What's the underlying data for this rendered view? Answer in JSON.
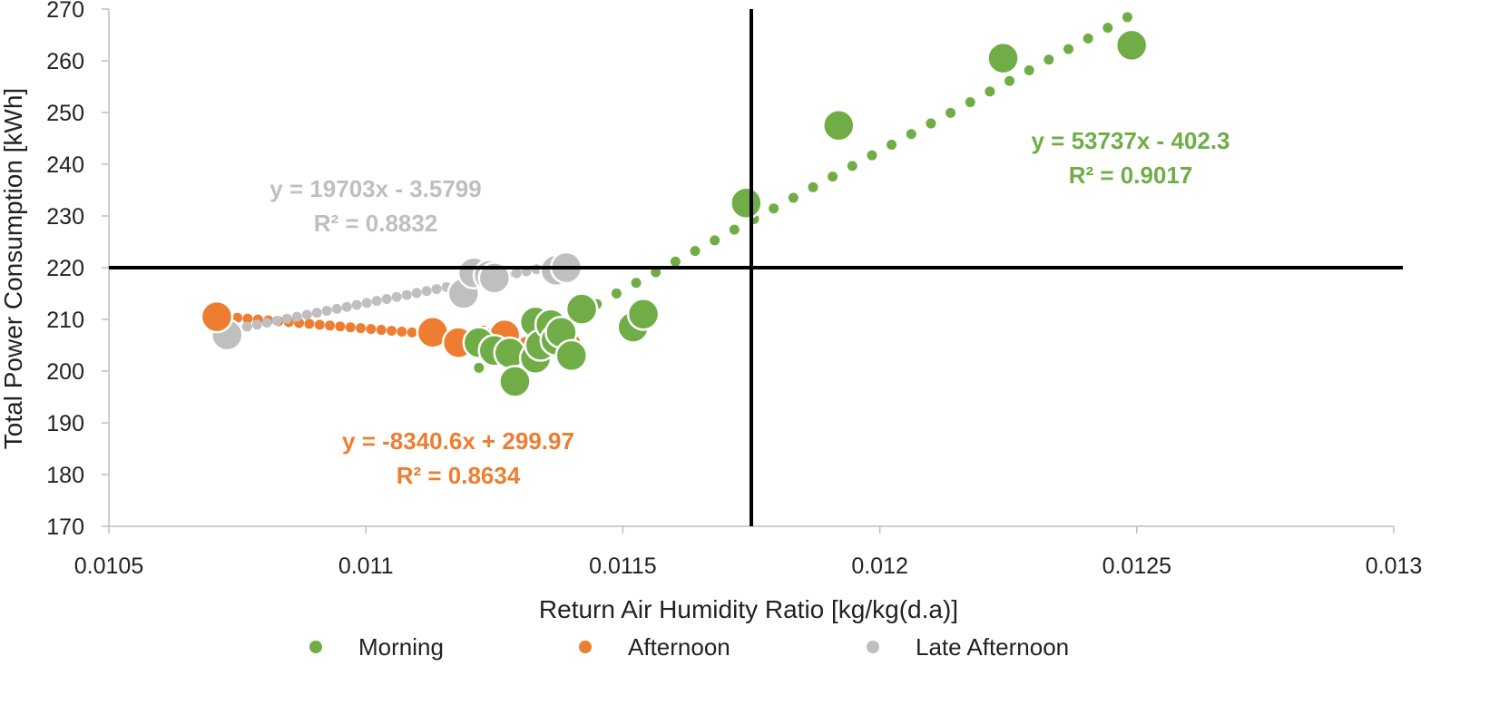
{
  "chart_data": {
    "type": "scatter",
    "title": "",
    "xlabel": "Return Air Humidity Ratio [kg/kg(d.a)]",
    "ylabel": "Total Power Consumption [kWh]",
    "xlim": [
      0.0105,
      0.013
    ],
    "ylim": [
      170,
      270
    ],
    "x_ticks": [
      "0.0105",
      "0.011",
      "0.0115",
      "0.012",
      "0.0125",
      "0.013"
    ],
    "y_ticks": [
      "170",
      "180",
      "190",
      "200",
      "210",
      "220",
      "230",
      "240",
      "250",
      "260",
      "270"
    ],
    "grid": false,
    "legend_position": "bottom",
    "reference_lines": {
      "x": 0.01175,
      "y": 220
    },
    "series": [
      {
        "name": "Morning",
        "color": "#70AD47",
        "points": [
          [
            0.01122,
            205.5
          ],
          [
            0.01125,
            204.0
          ],
          [
            0.01128,
            203.5
          ],
          [
            0.01129,
            198.0
          ],
          [
            0.01133,
            202.5
          ],
          [
            0.01133,
            209.5
          ],
          [
            0.01134,
            205.0
          ],
          [
            0.01136,
            209.0
          ],
          [
            0.01137,
            206.0
          ],
          [
            0.01138,
            207.5
          ],
          [
            0.0114,
            203.0
          ],
          [
            0.01142,
            212.0
          ],
          [
            0.01152,
            208.5
          ],
          [
            0.01154,
            211.0
          ],
          [
            0.01174,
            232.5
          ],
          [
            0.01192,
            247.5
          ],
          [
            0.01224,
            260.5
          ],
          [
            0.01249,
            263.0
          ]
        ],
        "trendline": {
          "equation": "y = 53737x - 402.3",
          "r2": "R² = 0.9017",
          "slope": 53737,
          "intercept": -402.3,
          "x_range": [
            0.01122,
            0.01252
          ]
        }
      },
      {
        "name": "Afternoon",
        "color": "#ED7D31",
        "points": [
          [
            0.01071,
            210.5
          ],
          [
            0.01113,
            207.5
          ],
          [
            0.01118,
            205.5
          ],
          [
            0.01123,
            206.0
          ],
          [
            0.01124,
            205.5
          ],
          [
            0.01127,
            207.0
          ],
          [
            0.01139,
            205.0
          ]
        ],
        "trendline": {
          "equation": "y = -8340.6x + 299.97",
          "r2": "R² = 0.8634",
          "slope": -8340.6,
          "intercept": 299.97,
          "x_range": [
            0.01071,
            0.01139
          ]
        }
      },
      {
        "name": "Late Afternoon",
        "color": "#BFBFBF",
        "points": [
          [
            0.01073,
            207.0
          ],
          [
            0.01119,
            215.0
          ],
          [
            0.01121,
            219.0
          ],
          [
            0.01124,
            218.5
          ],
          [
            0.01125,
            218.0
          ],
          [
            0.01137,
            219.5
          ],
          [
            0.01139,
            220.0
          ]
        ],
        "trendline": {
          "equation": "y = 19703x - 3.5799",
          "r2": "R² = 0.8832",
          "slope": 19703,
          "intercept": -3.5799,
          "x_range": [
            0.01073,
            0.01139
          ]
        }
      }
    ]
  }
}
